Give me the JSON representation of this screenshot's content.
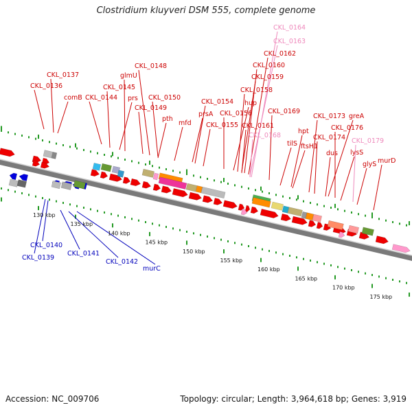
{
  "title": "Clostridium kluyveri DSM 555, complete genome",
  "footer": {
    "accession": "Accession: NC_009706",
    "summary": "Topology: circular; Length: 3,964,618 bp; Genes: 3,919"
  },
  "colors": {
    "forward_cds": "#ee0000",
    "reverse_cds": "#0000dd",
    "pseudo": "#ff99cc",
    "label_forward": "#cc0000",
    "label_reverse": "#0000bb",
    "label_pseudo": "#ee88bb",
    "backbone": "#888888",
    "tick": "#229922"
  },
  "scale_labels": [
    "130 kbp",
    "135 kbp",
    "140 kbp",
    "145 kbp",
    "150 kbp",
    "155 kbp",
    "160 kbp",
    "165 kbp",
    "170 kbp",
    "175 kbp"
  ],
  "forward_labels": [
    {
      "text": "CKL_0164",
      "kind": "pseudo"
    },
    {
      "text": "CKL_0163",
      "kind": "pseudo"
    },
    {
      "text": "CKL_0162",
      "kind": "gene"
    },
    {
      "text": "CKL_0160",
      "kind": "gene"
    },
    {
      "text": "CKL_0159",
      "kind": "gene"
    },
    {
      "text": "CKL_0148",
      "kind": "gene"
    },
    {
      "text": "CKL_0158",
      "kind": "gene"
    },
    {
      "text": "CKL_0137",
      "kind": "gene"
    },
    {
      "text": "glmU",
      "kind": "gene"
    },
    {
      "text": "CKL_0136",
      "kind": "gene"
    },
    {
      "text": "CKL_0145",
      "kind": "gene"
    },
    {
      "text": "hup",
      "kind": "gene"
    },
    {
      "text": "comB",
      "kind": "gene"
    },
    {
      "text": "CKL_0144",
      "kind": "gene"
    },
    {
      "text": "prs",
      "kind": "gene"
    },
    {
      "text": "CKL_0150",
      "kind": "gene"
    },
    {
      "text": "CKL_0154",
      "kind": "gene"
    },
    {
      "text": "CKL_0149",
      "kind": "gene"
    },
    {
      "text": "CKL_0156",
      "kind": "gene"
    },
    {
      "text": "CKL_0169",
      "kind": "gene"
    },
    {
      "text": "prsA",
      "kind": "gene"
    },
    {
      "text": "CKL_0173",
      "kind": "gene"
    },
    {
      "text": "greA",
      "kind": "gene"
    },
    {
      "text": "pth",
      "kind": "gene"
    },
    {
      "text": "mfd",
      "kind": "gene"
    },
    {
      "text": "CKL_0155",
      "kind": "gene"
    },
    {
      "text": "CKL_0161",
      "kind": "gene"
    },
    {
      "text": "CKL_0176",
      "kind": "gene"
    },
    {
      "text": "hpt",
      "kind": "gene"
    },
    {
      "text": "CKL_0168",
      "kind": "pseudo"
    },
    {
      "text": "CKL_0174",
      "kind": "gene"
    },
    {
      "text": "CKL_0179",
      "kind": "pseudo"
    },
    {
      "text": "tilS",
      "kind": "gene"
    },
    {
      "text": "ftsH1",
      "kind": "gene"
    },
    {
      "text": "dus",
      "kind": "gene"
    },
    {
      "text": "lysS",
      "kind": "gene"
    },
    {
      "text": "murD",
      "kind": "gene"
    },
    {
      "text": "glyS",
      "kind": "gene"
    }
  ],
  "reverse_labels": [
    {
      "text": "CKL_0140"
    },
    {
      "text": "CKL_0139"
    },
    {
      "text": "CKL_0141"
    },
    {
      "text": "CKL_0142"
    },
    {
      "text": "murC"
    }
  ]
}
